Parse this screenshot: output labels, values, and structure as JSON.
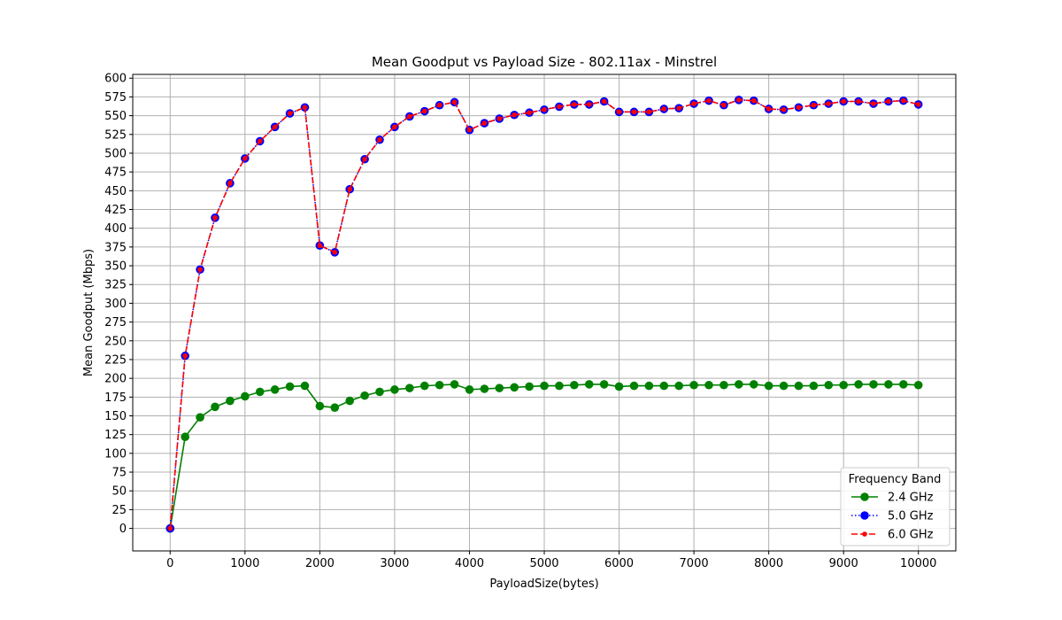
{
  "chart_data": {
    "type": "line",
    "title": "Mean Goodput vs Payload Size - 802.11ax - Minstrel",
    "xlabel": "PayloadSize(bytes)",
    "ylabel": "Mean Goodput (Mbps)",
    "xlim": [
      -500,
      10500
    ],
    "ylim": [
      -30,
      605
    ],
    "xticks": [
      0,
      1000,
      2000,
      3000,
      4000,
      5000,
      6000,
      7000,
      8000,
      9000,
      10000
    ],
    "yticks": [
      0,
      25,
      50,
      75,
      100,
      125,
      150,
      175,
      200,
      225,
      250,
      275,
      300,
      325,
      350,
      375,
      400,
      425,
      450,
      475,
      500,
      525,
      550,
      575,
      600
    ],
    "grid": true,
    "legend": {
      "title": "Frequency Band",
      "position": "lower-right"
    },
    "x": [
      0,
      200,
      400,
      600,
      800,
      1000,
      1200,
      1400,
      1600,
      1800,
      2000,
      2200,
      2400,
      2600,
      2800,
      3000,
      3200,
      3400,
      3600,
      3800,
      4000,
      4200,
      4400,
      4600,
      4800,
      5000,
      5200,
      5400,
      5600,
      5800,
      6000,
      6200,
      6400,
      6600,
      6800,
      7000,
      7200,
      7400,
      7600,
      7800,
      8000,
      8200,
      8400,
      8600,
      8800,
      9000,
      9200,
      9400,
      9600,
      9800,
      10000
    ],
    "series": [
      {
        "name": "2.4 GHz",
        "color": "#008000",
        "style": "solid",
        "marker": "circle",
        "values": [
          0,
          122,
          148,
          162,
          170,
          176,
          182,
          185,
          189,
          190,
          163,
          161,
          170,
          177,
          182,
          185,
          187,
          190,
          191,
          192,
          185,
          186,
          187,
          188,
          189,
          190,
          190,
          191,
          192,
          192,
          189,
          190,
          190,
          190,
          190,
          191,
          191,
          191,
          192,
          192,
          190,
          190,
          190,
          190,
          191,
          191,
          192,
          192,
          192,
          192,
          191
        ]
      },
      {
        "name": "5.0 GHz",
        "color": "#0000ff",
        "style": "dotted",
        "marker": "circle",
        "values": [
          0,
          230,
          345,
          414,
          460,
          493,
          516,
          535,
          553,
          561,
          377,
          368,
          452,
          492,
          518,
          535,
          549,
          556,
          564,
          568,
          531,
          540,
          546,
          551,
          554,
          558,
          562,
          565,
          565,
          569,
          555,
          555,
          555,
          559,
          560,
          566,
          570,
          564,
          571,
          570,
          559,
          558,
          561,
          564,
          566,
          569,
          569,
          566,
          569,
          570,
          565
        ]
      },
      {
        "name": "6.0 GHz",
        "color": "#ff0000",
        "style": "dashed",
        "marker": "dot",
        "values": [
          0,
          230,
          345,
          414,
          460,
          493,
          516,
          535,
          553,
          561,
          377,
          368,
          452,
          492,
          518,
          535,
          549,
          556,
          564,
          568,
          531,
          540,
          546,
          551,
          554,
          558,
          562,
          565,
          565,
          569,
          555,
          555,
          555,
          559,
          560,
          566,
          570,
          564,
          571,
          570,
          559,
          558,
          561,
          564,
          566,
          569,
          569,
          566,
          569,
          570,
          565
        ]
      }
    ]
  }
}
